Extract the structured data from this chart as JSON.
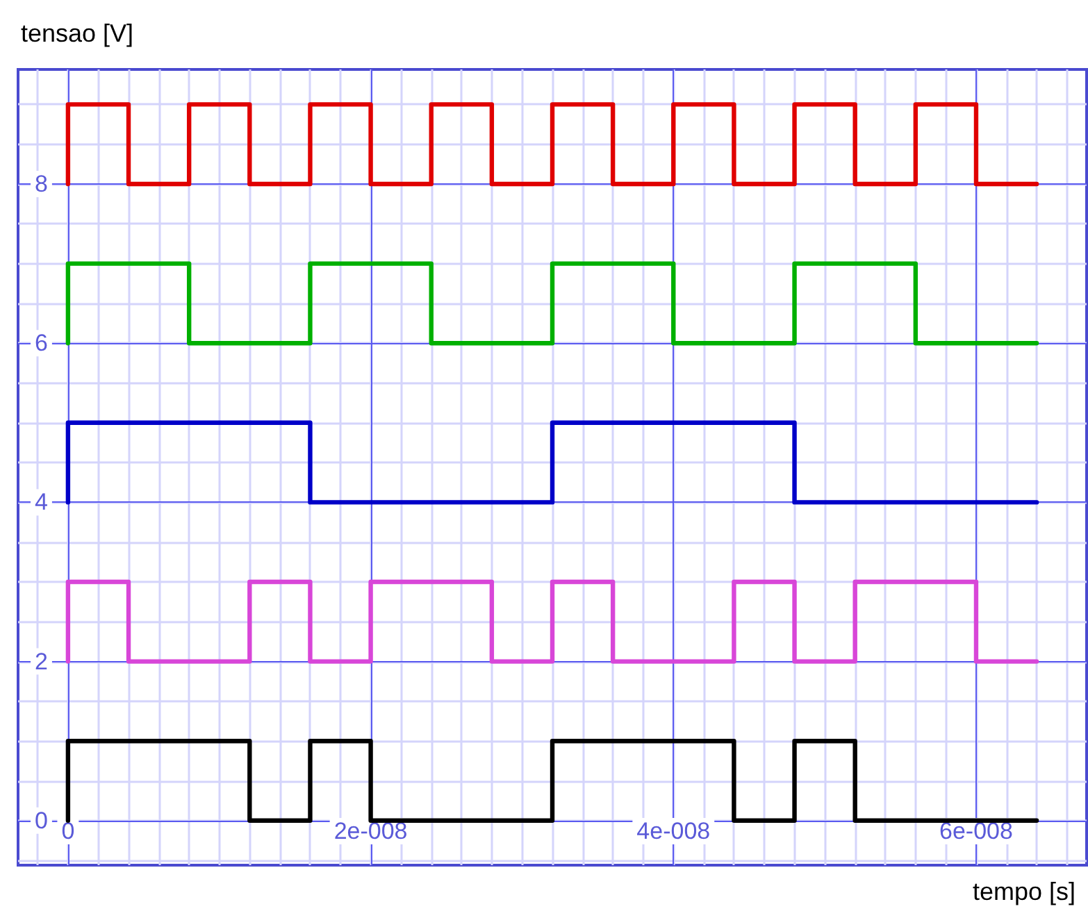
{
  "chart_data": {
    "type": "step",
    "xlabel": "tempo [s]",
    "ylabel": "tensao [V]",
    "xlim": [
      -3.3e-09,
      6.73e-08
    ],
    "ylim": [
      -0.56,
      9.44
    ],
    "xticks": [
      {
        "value": 0,
        "label": "0"
      },
      {
        "value": 2e-08,
        "label": "2e-008"
      },
      {
        "value": 4e-08,
        "label": "4e-008"
      },
      {
        "value": 6e-08,
        "label": "6e-008"
      }
    ],
    "yticks": [
      0,
      2,
      4,
      6,
      8
    ],
    "grid": true,
    "marker": "none",
    "line_style": "solid",
    "series": [
      {
        "color": "#e00000",
        "x": [
          0,
          0,
          4e-09,
          8e-09,
          1.2e-08,
          1.6e-08,
          2e-08,
          2.4e-08,
          2.8e-08,
          3.2e-08,
          3.6e-08,
          4e-08,
          4.4e-08,
          4.8e-08,
          5.2e-08,
          5.6e-08,
          6e-08,
          6.4e-08
        ],
        "values": [
          8,
          9,
          8,
          9,
          8,
          9,
          8,
          9,
          8,
          9,
          8,
          9,
          8,
          9,
          8,
          9,
          8,
          8
        ]
      },
      {
        "color": "#00b000",
        "x": [
          0,
          0,
          8e-09,
          1.6e-08,
          2.4e-08,
          3.2e-08,
          4e-08,
          4.8e-08,
          5.6e-08,
          6.4e-08
        ],
        "values": [
          6,
          7,
          6,
          7,
          6,
          7,
          6,
          7,
          6,
          6
        ]
      },
      {
        "color": "#0000c8",
        "x": [
          0,
          0,
          1.6e-08,
          3.2e-08,
          4.8e-08,
          6.4e-08
        ],
        "values": [
          4,
          5,
          4,
          5,
          4,
          4
        ]
      },
      {
        "color": "#d846d8",
        "x": [
          0,
          0,
          4e-09,
          1.2e-08,
          1.6e-08,
          2e-08,
          2.8e-08,
          3.2e-08,
          3.6e-08,
          4.4e-08,
          4.8e-08,
          5.2e-08,
          6e-08,
          6.4e-08
        ],
        "values": [
          2,
          3,
          2,
          3,
          2,
          3,
          2,
          3,
          2,
          3,
          2,
          3,
          2,
          2
        ]
      },
      {
        "color": "#000000",
        "x": [
          0,
          0,
          1.2e-08,
          1.6e-08,
          2e-08,
          3.2e-08,
          4.4e-08,
          4.8e-08,
          5.2e-08,
          6.4e-08
        ],
        "values": [
          0,
          1,
          0,
          1,
          0,
          1,
          0,
          1,
          0,
          0
        ]
      }
    ]
  }
}
